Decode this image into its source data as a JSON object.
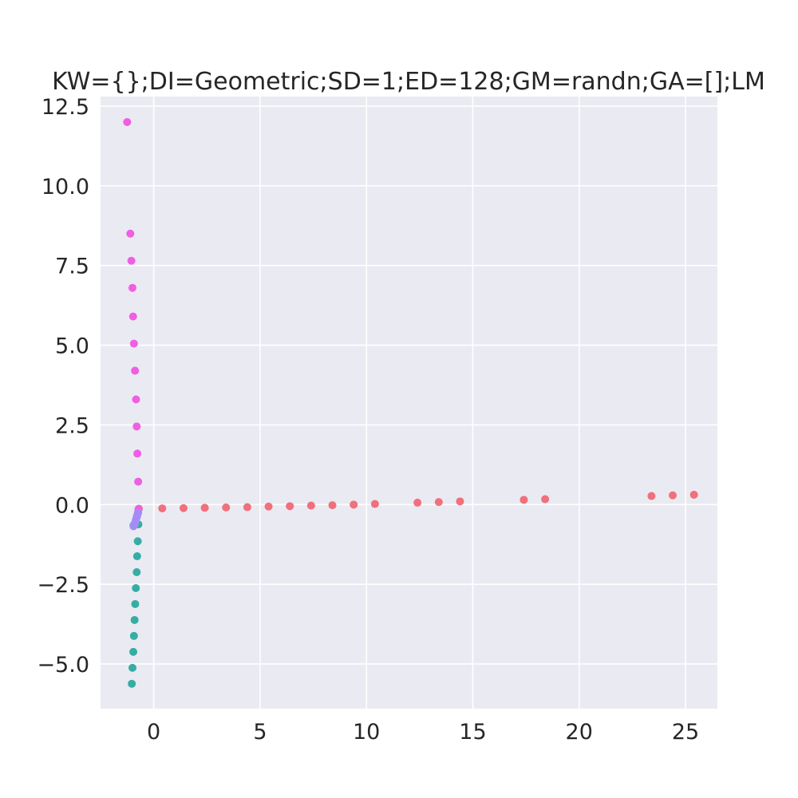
{
  "chart_data": {
    "type": "scatter",
    "title": "KW={};DI=Geometric;SD=1;ED=128;GM=randn;GA=[];LM",
    "xlabel": "",
    "ylabel": "",
    "xlim": [
      -2.5,
      26.5
    ],
    "ylim": [
      -6.4,
      12.8
    ],
    "xticks": [
      0,
      5,
      10,
      15,
      20,
      25
    ],
    "xtick_labels": [
      "0",
      "5",
      "10",
      "15",
      "20",
      "25"
    ],
    "yticks": [
      -5.0,
      -2.5,
      0.0,
      2.5,
      5.0,
      7.5,
      10.0,
      12.5
    ],
    "ytick_labels": [
      "−5.0",
      "−2.5",
      "0.0",
      "2.5",
      "5.0",
      "7.5",
      "10.0",
      "12.5"
    ],
    "grid": true,
    "background": "#eaeaf2",
    "grid_color": "#ffffff",
    "series": [
      {
        "color": "#f0707c",
        "points": [
          [
            -0.7,
            -0.13
          ],
          [
            0.4,
            -0.12
          ],
          [
            1.4,
            -0.11
          ],
          [
            2.4,
            -0.1
          ],
          [
            3.4,
            -0.09
          ],
          [
            4.4,
            -0.08
          ],
          [
            5.4,
            -0.06
          ],
          [
            6.4,
            -0.05
          ],
          [
            7.4,
            -0.03
          ],
          [
            8.4,
            -0.02
          ],
          [
            9.4,
            0.0
          ],
          [
            10.4,
            0.02
          ],
          [
            12.4,
            0.06
          ],
          [
            13.4,
            0.08
          ],
          [
            14.4,
            0.1
          ],
          [
            17.4,
            0.15
          ],
          [
            18.4,
            0.17
          ],
          [
            23.4,
            0.27
          ],
          [
            24.4,
            0.29
          ],
          [
            25.4,
            0.31
          ]
        ]
      },
      {
        "color": "#f05ee3",
        "points": [
          [
            -1.25,
            12.0
          ],
          [
            -1.1,
            8.5
          ],
          [
            -1.05,
            7.65
          ],
          [
            -1.0,
            6.8
          ],
          [
            -0.97,
            5.9
          ],
          [
            -0.93,
            5.05
          ],
          [
            -0.88,
            4.2
          ],
          [
            -0.83,
            3.3
          ],
          [
            -0.8,
            2.45
          ],
          [
            -0.77,
            1.6
          ],
          [
            -0.73,
            0.72
          ],
          [
            -0.72,
            -0.15
          ],
          [
            -0.74,
            -0.25
          ],
          [
            -0.78,
            -0.35
          ]
        ]
      },
      {
        "color": "#36ada4",
        "points": [
          [
            -0.72,
            -0.62
          ],
          [
            -0.75,
            -1.15
          ],
          [
            -0.78,
            -1.62
          ],
          [
            -0.8,
            -2.12
          ],
          [
            -0.84,
            -2.62
          ],
          [
            -0.87,
            -3.12
          ],
          [
            -0.9,
            -3.62
          ],
          [
            -0.93,
            -4.12
          ],
          [
            -0.96,
            -4.62
          ],
          [
            -1.0,
            -5.12
          ],
          [
            -1.03,
            -5.62
          ],
          [
            -0.95,
            -0.65
          ]
        ]
      },
      {
        "color": "#a48cf4",
        "points": [
          [
            -0.73,
            -0.25
          ],
          [
            -0.77,
            -0.32
          ],
          [
            -0.8,
            -0.4
          ],
          [
            -0.84,
            -0.48
          ],
          [
            -0.87,
            -0.56
          ],
          [
            -0.9,
            -0.62
          ],
          [
            -0.95,
            -0.68
          ]
        ]
      }
    ]
  }
}
